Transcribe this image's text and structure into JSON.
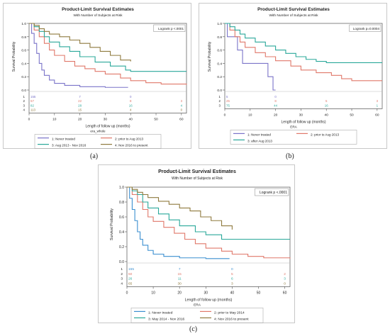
{
  "figure": {
    "captions": [
      "(a)",
      "(b)",
      "(c)"
    ]
  },
  "chart_data": [
    {
      "type": "line",
      "panel_caption": "(a)",
      "title": "Product-Limit Survival Estimates",
      "subtitle": "With Number of Subjects at Risk",
      "xlabel": "Length of follow up (months)",
      "ylabel": "Survival Probability",
      "annotation": "Logrank p <.0001",
      "xlim": [
        0,
        62
      ],
      "ylim": [
        0,
        1.0
      ],
      "xticks": [
        0,
        10,
        20,
        30,
        40,
        50,
        60
      ],
      "yticks": [
        0.0,
        0.2,
        0.4,
        0.6,
        0.8,
        1.0
      ],
      "grid": false,
      "legend_title": "era_whole",
      "legend_position": "bottom",
      "at_risk": {
        "x_positions": [
          0,
          20,
          40,
          60
        ],
        "rows": [
          {
            "id": "1",
            "values": [
              "155",
              "7",
              "0",
              ""
            ]
          },
          {
            "id": "2",
            "values": [
              "57",
              "22",
              "8",
              "3"
            ]
          },
          {
            "id": "3",
            "values": [
              "82",
              "28",
              "16",
              "4"
            ]
          },
          {
            "id": "4",
            "values": [
              "113",
              "15",
              "4",
              "0"
            ]
          }
        ]
      },
      "series": [
        {
          "name": "1: Never treated",
          "color": "#7b74c9",
          "x": [
            0,
            1,
            2,
            3,
            4,
            5,
            6,
            8,
            10,
            14,
            20,
            30,
            39
          ],
          "y": [
            1.0,
            0.85,
            0.7,
            0.55,
            0.4,
            0.3,
            0.22,
            0.15,
            0.1,
            0.07,
            0.05,
            0.04,
            0.04
          ]
        },
        {
          "name": "2: prior to Aug 2013",
          "color": "#e0786a",
          "x": [
            0,
            2,
            4,
            6,
            8,
            10,
            14,
            18,
            22,
            26,
            30,
            36,
            40,
            46,
            52,
            62
          ],
          "y": [
            1.0,
            0.9,
            0.8,
            0.7,
            0.6,
            0.52,
            0.43,
            0.36,
            0.32,
            0.28,
            0.24,
            0.18,
            0.14,
            0.11,
            0.09,
            0.08
          ]
        },
        {
          "name": "3: Aug 2013 - Nov 2016",
          "color": "#2aa89a",
          "x": [
            0,
            2,
            4,
            6,
            8,
            12,
            16,
            20,
            26,
            32,
            38,
            40,
            62
          ],
          "y": [
            1.0,
            0.95,
            0.88,
            0.8,
            0.72,
            0.65,
            0.58,
            0.5,
            0.42,
            0.36,
            0.3,
            0.28,
            0.28
          ]
        },
        {
          "name": "4: Nov 2016 to present",
          "color": "#8f7a3e",
          "x": [
            0,
            2,
            4,
            6,
            8,
            12,
            16,
            20,
            24,
            28,
            32,
            36,
            40
          ],
          "y": [
            1.0,
            0.97,
            0.92,
            0.88,
            0.84,
            0.8,
            0.75,
            0.7,
            0.64,
            0.58,
            0.52,
            0.45,
            0.43
          ]
        }
      ]
    },
    {
      "type": "line",
      "panel_caption": "(b)",
      "title": "Product-Limit Survival Estimates",
      "subtitle": "With Number of Subjects at Risk",
      "xlabel": "Length of follow up (months)",
      "ylabel": "Survival Probability",
      "annotation": "Logrank p=0.0004",
      "xlim": [
        0,
        62
      ],
      "ylim": [
        0,
        1.0
      ],
      "xticks": [
        0,
        10,
        20,
        30,
        40,
        50,
        60
      ],
      "yticks": [
        0.0,
        0.2,
        0.4,
        0.6,
        0.8,
        1.0
      ],
      "grid": false,
      "legend_title": "ERA",
      "legend_position": "bottom",
      "at_risk": {
        "x_positions": [
          0,
          20,
          40,
          60
        ],
        "rows": [
          {
            "id": "1",
            "values": [
              "5",
              "0",
              "",
              ""
            ]
          },
          {
            "id": "2",
            "values": [
              "25",
              "8",
              "5",
              "3"
            ]
          },
          {
            "id": "3",
            "values": [
              "75",
              "44",
              "16",
              "1"
            ]
          }
        ]
      },
      "series": [
        {
          "name": "1: Never treated",
          "color": "#7b74c9",
          "x": [
            0,
            1,
            3,
            5,
            7,
            10,
            13,
            16,
            17,
            19,
            20
          ],
          "y": [
            1.0,
            0.8,
            0.8,
            0.6,
            0.4,
            0.4,
            0.4,
            0.4,
            0.2,
            0.0,
            0.0
          ]
        },
        {
          "name": "2: prior to Aug 2013",
          "color": "#e0786a",
          "x": [
            0,
            2,
            4,
            6,
            8,
            12,
            16,
            20,
            26,
            30,
            36,
            42,
            46,
            50,
            62
          ],
          "y": [
            1.0,
            0.9,
            0.8,
            0.72,
            0.64,
            0.56,
            0.5,
            0.44,
            0.36,
            0.3,
            0.26,
            0.22,
            0.17,
            0.14,
            0.14
          ]
        },
        {
          "name": "3: after Aug 2013",
          "color": "#2aa89a",
          "x": [
            0,
            2,
            4,
            6,
            8,
            12,
            16,
            20,
            24,
            28,
            32,
            36,
            40,
            62
          ],
          "y": [
            1.0,
            0.95,
            0.9,
            0.84,
            0.78,
            0.72,
            0.66,
            0.6,
            0.55,
            0.5,
            0.46,
            0.43,
            0.41,
            0.41
          ]
        }
      ]
    },
    {
      "type": "line",
      "panel_caption": "(c)",
      "title": "Product-Limit Survival Estimates",
      "subtitle": "With Number of Subjects at Risk",
      "xlabel": "Length of follow up (months)",
      "ylabel": "Survival Probability",
      "annotation": "Logrank p <.0001",
      "xlim": [
        0,
        62
      ],
      "ylim": [
        0,
        1.0
      ],
      "xticks": [
        0,
        10,
        20,
        30,
        40,
        50,
        60
      ],
      "yticks": [
        0.0,
        0.2,
        0.4,
        0.6,
        0.8,
        1.0
      ],
      "grid": false,
      "legend_title": "ERA",
      "legend_position": "bottom",
      "at_risk": {
        "x_positions": [
          0,
          20,
          40,
          60
        ],
        "rows": [
          {
            "id": "1",
            "values": [
              "155",
              "7",
              "0",
              ""
            ]
          },
          {
            "id": "2",
            "values": [
              "50",
              "15",
              "5",
              "2"
            ]
          },
          {
            "id": "3",
            "values": [
              "26",
              "11",
              "6",
              "3"
            ]
          },
          {
            "id": "4",
            "values": [
              "65",
              "30",
              "3",
              "0"
            ]
          }
        ]
      },
      "series": [
        {
          "name": "1: Never treated",
          "color": "#3b8fd0",
          "x": [
            0,
            1,
            2,
            3,
            4,
            5,
            6,
            8,
            10,
            14,
            20,
            30,
            39
          ],
          "y": [
            1.0,
            0.85,
            0.7,
            0.55,
            0.4,
            0.3,
            0.22,
            0.15,
            0.1,
            0.07,
            0.05,
            0.04,
            0.04
          ]
        },
        {
          "name": "2: prior to May 2014",
          "color": "#e0786a",
          "x": [
            0,
            2,
            4,
            6,
            8,
            10,
            14,
            18,
            22,
            26,
            30,
            36,
            40,
            46,
            52,
            62
          ],
          "y": [
            1.0,
            0.9,
            0.8,
            0.7,
            0.6,
            0.54,
            0.46,
            0.38,
            0.3,
            0.24,
            0.18,
            0.14,
            0.1,
            0.07,
            0.05,
            0.04
          ]
        },
        {
          "name": "3: May 2014 - Nov 2016",
          "color": "#2aa89a",
          "x": [
            0,
            2,
            4,
            6,
            8,
            12,
            16,
            20,
            26,
            30,
            36,
            40,
            62
          ],
          "y": [
            1.0,
            0.95,
            0.9,
            0.8,
            0.72,
            0.64,
            0.56,
            0.48,
            0.4,
            0.36,
            0.3,
            0.3,
            0.3
          ]
        },
        {
          "name": "4: Nov 2016 to present",
          "color": "#8f7a3e",
          "x": [
            0,
            2,
            4,
            6,
            8,
            12,
            16,
            20,
            24,
            28,
            32,
            36,
            40
          ],
          "y": [
            1.0,
            0.97,
            0.93,
            0.9,
            0.86,
            0.81,
            0.77,
            0.72,
            0.68,
            0.6,
            0.55,
            0.48,
            0.43
          ]
        }
      ]
    }
  ]
}
